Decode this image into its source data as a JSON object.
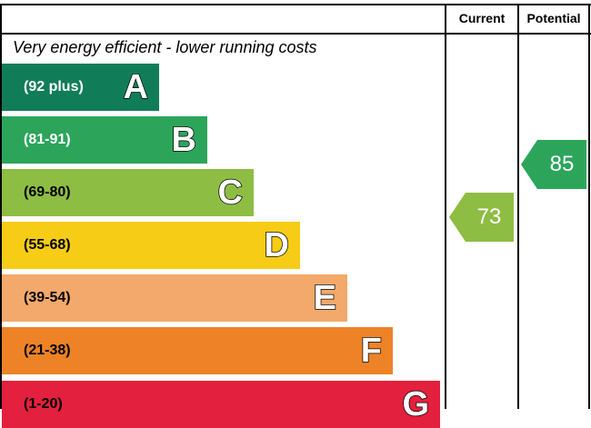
{
  "chart_data": {
    "type": "bar",
    "header": {
      "current": "Current",
      "potential": "Potential"
    },
    "caption_top": "Very energy efficient - lower running costs",
    "bands": [
      {
        "letter": "A",
        "range": "(92 plus)",
        "color": "#117d58",
        "text_color": "#ffffff"
      },
      {
        "letter": "B",
        "range": "(81-91)",
        "color": "#2ca55b",
        "text_color": "#ffffff"
      },
      {
        "letter": "C",
        "range": "(69-80)",
        "color": "#8ebd43",
        "text_color": "#000000"
      },
      {
        "letter": "D",
        "range": "(55-68)",
        "color": "#f6cc17",
        "text_color": "#000000"
      },
      {
        "letter": "E",
        "range": "(39-54)",
        "color": "#f2a96b",
        "text_color": "#000000"
      },
      {
        "letter": "F",
        "range": "(21-38)",
        "color": "#ee8227",
        "text_color": "#000000"
      },
      {
        "letter": "G",
        "range": "(1-20)",
        "color": "#e3203d",
        "text_color": "#000000"
      }
    ],
    "current": {
      "value": "73",
      "band": "C",
      "color": "#8ebd43"
    },
    "potential": {
      "value": "85",
      "band": "B",
      "color": "#2ca55b"
    }
  }
}
